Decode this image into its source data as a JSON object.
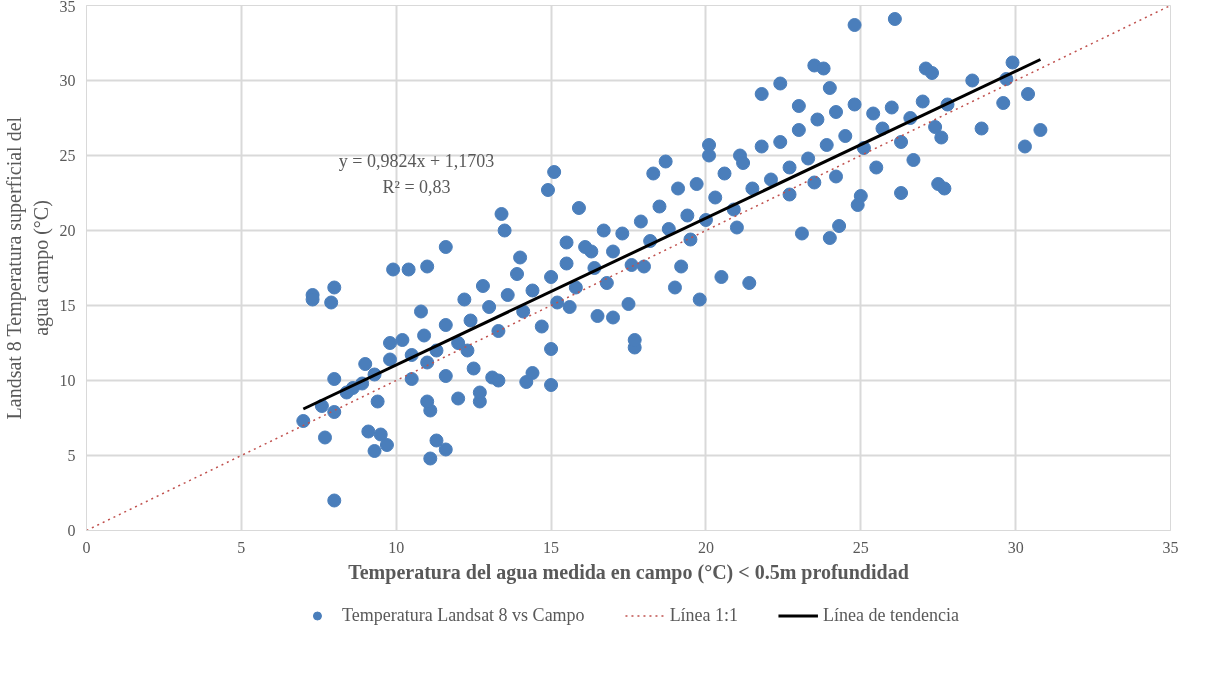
{
  "chart_data": {
    "type": "scatter",
    "xlabel": "Temperatura del agua medida en campo (°C) < 0.5m profundidad",
    "ylabel": "Landsat 8 Temperatura superficial del agua campo (°C)",
    "annotations": [
      "y = 0,9824x + 1,1703",
      "R² = 0,83"
    ],
    "xlim": [
      0,
      35
    ],
    "ylim": [
      0,
      35
    ],
    "xticks": [
      0,
      5,
      10,
      15,
      20,
      25,
      30,
      35
    ],
    "yticks": [
      0,
      5,
      10,
      15,
      20,
      25,
      30,
      35
    ],
    "grid": true,
    "legend": "bottom",
    "marker": "circle",
    "series": [
      {
        "name": "Temperatura Landsat 8 vs Campo",
        "color": "#4a7ebb",
        "x": [
          7.0,
          7.3,
          7.3,
          7.9,
          8.0,
          7.7,
          8.0,
          8.0,
          7.6,
          8.0,
          8.6,
          9.0,
          9.1,
          9.3,
          9.5,
          9.7,
          9.4,
          9.8,
          9.9,
          10.4,
          11.0,
          11.6,
          10.8,
          10.5,
          11.1,
          11.1,
          11.3,
          11.6,
          11.0,
          11.6,
          12.0,
          12.5,
          12.7,
          12.7,
          13.1,
          13.3,
          13.4,
          13.5,
          14.0,
          14.2,
          14.4,
          14.9,
          15.1,
          15.0,
          15.0,
          15.5,
          15.9,
          16.3,
          16.5,
          17.0,
          17.5,
          17.7,
          17.7,
          18.3,
          18.7,
          19.0,
          19.2,
          19.8,
          20.1,
          20.1,
          20.5,
          21.1,
          21.4,
          21.8,
          22.4,
          23.0,
          23.1,
          23.5,
          23.8,
          24.0,
          24.0,
          24.3,
          24.8,
          26.1,
          25.0,
          26.3,
          27.1,
          27.3,
          27.5,
          27.7,
          28.6,
          28.9,
          29.6,
          29.7,
          29.9,
          30.4,
          30.3,
          30.8,
          27.6,
          26.7,
          24.9,
          8.4,
          8.9,
          9.3,
          9.8,
          10.2,
          10.5,
          10.9,
          11.3,
          11.6,
          12.0,
          12.2,
          12.4,
          12.8,
          13.0,
          13.3,
          13.6,
          13.9,
          14.1,
          14.4,
          14.7,
          15.0,
          15.2,
          15.5,
          15.8,
          16.1,
          16.4,
          16.7,
          17.0,
          17.3,
          17.6,
          17.9,
          18.2,
          18.5,
          18.8,
          19.1,
          19.4,
          19.7,
          20.0,
          20.3,
          20.6,
          20.9,
          21.2,
          21.5,
          21.8,
          22.1,
          22.4,
          22.7,
          23.0,
          23.3,
          23.6,
          23.9,
          24.2,
          24.5,
          24.8,
          25.1,
          25.4,
          25.7,
          26.0,
          26.3,
          26.6,
          27.0,
          27.4,
          27.8,
          22.7,
          23.5,
          24.2,
          25.5,
          21.0,
          19.5,
          18.0,
          16.8,
          15.6,
          12.3,
          11.0
        ],
        "values": [
          7.3,
          15.7,
          15.4,
          15.2,
          16.2,
          6.2,
          2.0,
          10.1,
          8.3,
          7.9,
          9.5,
          11.1,
          6.6,
          5.3,
          6.4,
          5.7,
          8.6,
          12.5,
          17.4,
          17.4,
          17.6,
          18.9,
          14.6,
          10.1,
          8.0,
          4.8,
          6.0,
          5.4,
          8.6,
          10.3,
          8.8,
          10.8,
          8.6,
          9.2,
          10.2,
          10.0,
          21.1,
          20.0,
          18.2,
          9.9,
          10.5,
          22.7,
          23.9,
          9.7,
          12.1,
          19.2,
          21.5,
          18.6,
          14.3,
          14.2,
          15.1,
          12.2,
          12.7,
          23.8,
          24.6,
          16.2,
          17.6,
          15.4,
          25.7,
          25.0,
          16.9,
          25.0,
          16.5,
          29.1,
          29.8,
          28.3,
          19.8,
          31.0,
          30.8,
          29.5,
          19.5,
          20.3,
          33.7,
          34.1,
          22.3,
          22.5,
          30.8,
          30.5,
          23.1,
          22.8,
          30.0,
          26.8,
          28.5,
          30.1,
          31.2,
          29.1,
          25.6,
          26.7,
          26.2,
          24.7,
          21.7,
          9.2,
          9.8,
          10.4,
          11.4,
          12.7,
          11.7,
          13.0,
          12.0,
          13.7,
          12.5,
          15.4,
          14.0,
          16.3,
          14.9,
          13.3,
          15.7,
          17.1,
          14.6,
          16.0,
          13.6,
          16.9,
          15.2,
          17.8,
          16.2,
          18.9,
          17.5,
          20.0,
          18.6,
          19.8,
          17.7,
          20.6,
          19.3,
          21.6,
          20.1,
          22.8,
          21.0,
          23.1,
          20.7,
          22.2,
          23.8,
          21.4,
          24.5,
          22.8,
          25.6,
          23.4,
          25.9,
          24.2,
          26.7,
          24.8,
          27.4,
          25.7,
          27.9,
          26.3,
          28.4,
          25.5,
          27.8,
          26.8,
          28.2,
          25.9,
          27.5,
          28.6,
          26.9,
          28.4,
          22.4,
          23.2,
          23.6,
          24.2,
          20.2,
          19.4,
          17.6,
          16.5,
          14.9,
          12.0,
          11.2
        ]
      },
      {
        "name": "Línea 1:1",
        "type": "line",
        "color": "#c0504d",
        "line_style": "dotted",
        "marker": "none",
        "x": [
          0,
          35
        ],
        "values": [
          0,
          35
        ]
      },
      {
        "name": "Línea de tendencia",
        "type": "line",
        "color": "#000000",
        "line_style": "solid",
        "marker": "none",
        "x": [
          7.0,
          30.8
        ],
        "values": [
          8.1,
          31.4
        ]
      }
    ]
  }
}
